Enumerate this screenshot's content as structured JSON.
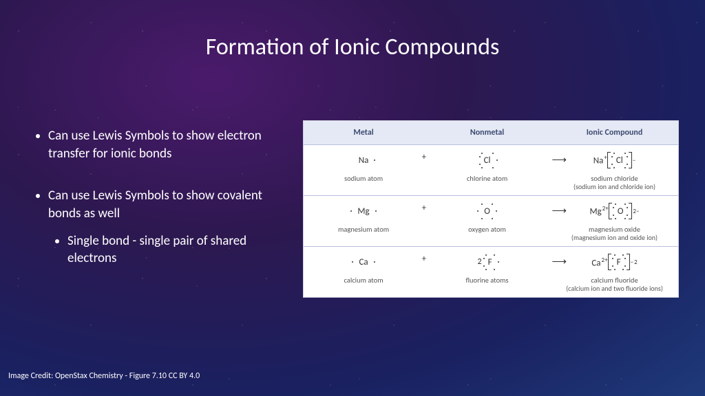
{
  "title": "Formation of Ionic Compounds",
  "bullets": {
    "b1": "Can use Lewis Symbols to show electron transfer for ionic bonds",
    "b2": "Can use Lewis Symbols to show covalent bonds as well",
    "b2_1": "Single bond - single pair of shared electrons"
  },
  "credit": "Image Credit: OpenStax Chemistry - Figure 7.10 CC BY 4.0",
  "table": {
    "headers": {
      "metal": "Metal",
      "nonmetal": "Nonmetal",
      "compound": "Ionic Compound"
    },
    "rows": [
      {
        "metal_sym": "Na",
        "metal_label": "sodium atom",
        "non_sym": "Cl",
        "non_label": "chlorine atom",
        "comp_pre": "Na",
        "comp_pre_charge": "+",
        "comp_ion": "Cl",
        "comp_ion_charge": "−",
        "comp_label": "sodium chloride",
        "comp_sub": "(sodium ion and chloride ion)"
      },
      {
        "metal_sym": "Mg",
        "metal_label": "magnesium atom",
        "non_sym": "O",
        "non_label": "oxygen atom",
        "comp_pre": "Mg",
        "comp_pre_charge": "2+",
        "comp_ion": "O",
        "comp_ion_charge": "2−",
        "comp_label": "magnesium oxide",
        "comp_sub": "(magnesium ion and oxide ion)"
      },
      {
        "metal_sym": "Ca",
        "metal_label": "calcium atom",
        "non_pre": "2",
        "non_sym": "F",
        "non_label": "fluorine atoms",
        "comp_pre": "Ca",
        "comp_pre_charge": "2+",
        "comp_ion": "F",
        "comp_ion_charge": "−",
        "comp_suffix": "2",
        "comp_label": "calcium fluoride",
        "comp_sub": "(calcium ion and two fluoride ions)"
      }
    ]
  },
  "styling": {
    "slide_size": [
      1024,
      576
    ],
    "background_gradient": [
      "#4a1a6b",
      "#2d1850",
      "#1a2060",
      "#1e3a7a"
    ],
    "title_fontsize": 34,
    "title_weight": 300,
    "bullet_fontsize": 19,
    "credit_fontsize": 12,
    "table_colors": {
      "bg": "#ffffff",
      "header_bg": "#e5e9f5",
      "border": "#b7bfdd",
      "header_text": "#3c4a70",
      "body_text": "#3a3a3a"
    },
    "table_col_widths_pct": [
      32,
      34,
      34
    ],
    "table_header_fontsize": 12,
    "table_symbol_fontsize": 13,
    "table_label_fontsize": 10.5
  }
}
